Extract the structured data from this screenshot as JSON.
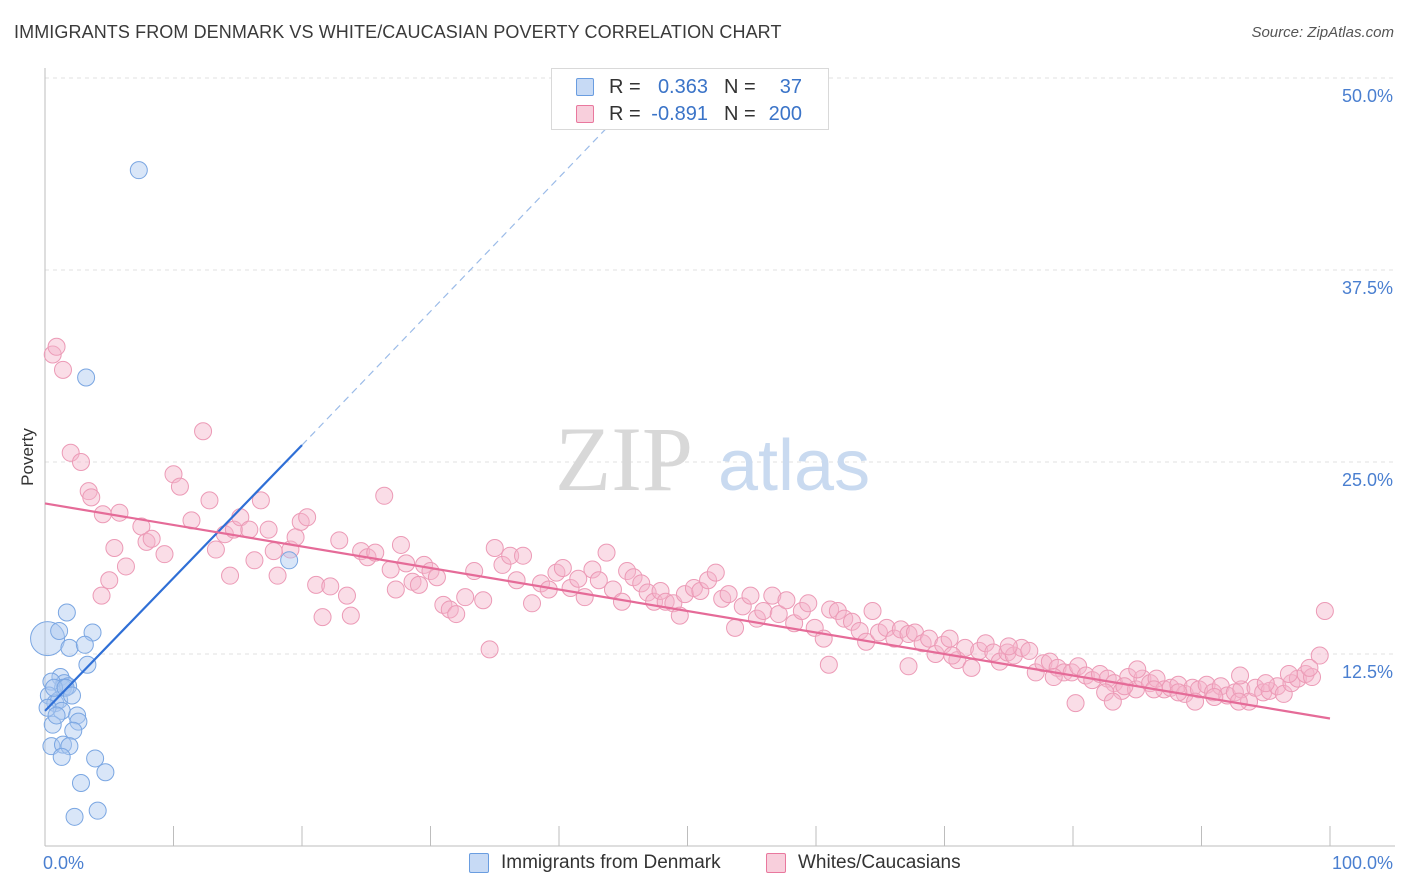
{
  "title": "IMMIGRANTS FROM DENMARK VS WHITE/CAUCASIAN POVERTY CORRELATION CHART",
  "source": "Source: ZipAtlas.com",
  "watermark": {
    "zip": "ZIP",
    "atlas": "atlas"
  },
  "legend": {
    "r_label": "R =",
    "n_label": "N =",
    "rows": [
      {
        "r": "0.363",
        "n": "37",
        "color": "#6a9de0"
      },
      {
        "r": "-0.891",
        "n": "200",
        "color": "#e9789e"
      }
    ]
  },
  "bottom_legend": [
    "Immigrants from Denmark",
    "Whites/Caucasians"
  ],
  "chart_data": {
    "type": "scatter",
    "title": "IMMIGRANTS FROM DENMARK VS WHITE/CAUCASIAN POVERTY CORRELATION CHART",
    "xlabel": "",
    "ylabel": "Poverty",
    "xlim": [
      0,
      100
    ],
    "ylim": [
      0,
      50
    ],
    "x_tick_labels": [
      "0.0%",
      "100.0%"
    ],
    "y_ticks": [
      12.5,
      25.0,
      37.5,
      50.0
    ],
    "y_tick_labels": [
      "12.5%",
      "25.0%",
      "37.5%",
      "50.0%"
    ],
    "grid": true,
    "legend_position": "top-center",
    "series": [
      {
        "name": "Immigrants from Denmark",
        "color": "#6a9de0",
        "r": 0.363,
        "n": 37,
        "trend_solid": [
          [
            0.0,
            8.8
          ],
          [
            20.0,
            26.1
          ]
        ],
        "trend_dashed": [
          [
            20.0,
            26.1
          ],
          [
            44.0,
            47.0
          ]
        ],
        "points": [
          [
            0.2,
            13.5
          ],
          [
            7.3,
            44.0
          ],
          [
            3.2,
            30.5
          ],
          [
            1.7,
            15.2
          ],
          [
            1.1,
            14.0
          ],
          [
            3.7,
            13.9
          ],
          [
            1.9,
            12.9
          ],
          [
            3.3,
            11.8
          ],
          [
            1.2,
            11.0
          ],
          [
            1.5,
            10.6
          ],
          [
            1.4,
            10.3
          ],
          [
            1.8,
            10.4
          ],
          [
            0.5,
            10.7
          ],
          [
            0.3,
            9.8
          ],
          [
            0.8,
            9.3
          ],
          [
            1.1,
            9.5
          ],
          [
            1.3,
            8.8
          ],
          [
            2.5,
            8.5
          ],
          [
            2.6,
            8.1
          ],
          [
            0.6,
            7.9
          ],
          [
            2.2,
            7.5
          ],
          [
            0.5,
            6.5
          ],
          [
            1.4,
            6.6
          ],
          [
            1.9,
            6.5
          ],
          [
            1.3,
            5.8
          ],
          [
            3.9,
            5.7
          ],
          [
            4.7,
            4.8
          ],
          [
            2.8,
            4.1
          ],
          [
            4.1,
            2.3
          ],
          [
            2.3,
            1.9
          ],
          [
            0.2,
            9.0
          ],
          [
            0.7,
            10.3
          ],
          [
            0.9,
            8.5
          ],
          [
            1.6,
            10.3
          ],
          [
            3.1,
            13.1
          ],
          [
            19.0,
            18.6
          ],
          [
            2.1,
            9.8
          ]
        ]
      },
      {
        "name": "Whites/Caucasians",
        "color": "#e9789e",
        "r": -0.891,
        "n": 200,
        "trend_solid": [
          [
            0.0,
            22.3
          ],
          [
            100.0,
            8.3
          ]
        ],
        "points": [
          [
            0.6,
            32.0
          ],
          [
            0.9,
            32.5
          ],
          [
            1.4,
            31.0
          ],
          [
            2.0,
            25.6
          ],
          [
            2.8,
            25.0
          ],
          [
            3.4,
            23.1
          ],
          [
            3.6,
            22.7
          ],
          [
            4.5,
            21.6
          ],
          [
            5.8,
            21.7
          ],
          [
            5.0,
            17.3
          ],
          [
            4.4,
            16.3
          ],
          [
            5.4,
            19.4
          ],
          [
            6.3,
            18.2
          ],
          [
            7.5,
            20.8
          ],
          [
            7.9,
            19.8
          ],
          [
            8.3,
            20.0
          ],
          [
            9.3,
            19.0
          ],
          [
            10.0,
            24.2
          ],
          [
            10.5,
            23.4
          ],
          [
            11.4,
            21.2
          ],
          [
            12.3,
            27.0
          ],
          [
            12.8,
            22.5
          ],
          [
            13.3,
            19.3
          ],
          [
            14.0,
            20.3
          ],
          [
            14.4,
            17.6
          ],
          [
            14.7,
            20.6
          ],
          [
            15.2,
            21.4
          ],
          [
            15.9,
            20.6
          ],
          [
            16.3,
            18.6
          ],
          [
            16.8,
            22.5
          ],
          [
            17.4,
            20.6
          ],
          [
            17.8,
            19.2
          ],
          [
            18.1,
            17.6
          ],
          [
            19.1,
            19.3
          ],
          [
            19.5,
            20.1
          ],
          [
            19.9,
            21.1
          ],
          [
            20.4,
            21.4
          ],
          [
            21.1,
            17.0
          ],
          [
            21.6,
            14.9
          ],
          [
            22.2,
            16.9
          ],
          [
            22.9,
            19.9
          ],
          [
            23.5,
            16.3
          ],
          [
            23.8,
            15.0
          ],
          [
            24.6,
            19.2
          ],
          [
            25.1,
            18.8
          ],
          [
            25.7,
            19.1
          ],
          [
            26.4,
            22.8
          ],
          [
            26.9,
            18.0
          ],
          [
            27.3,
            16.7
          ],
          [
            27.7,
            19.6
          ],
          [
            28.1,
            18.4
          ],
          [
            28.6,
            17.2
          ],
          [
            29.1,
            17.0
          ],
          [
            29.5,
            18.3
          ],
          [
            30.0,
            17.9
          ],
          [
            30.5,
            17.5
          ],
          [
            31.0,
            15.7
          ],
          [
            31.5,
            15.4
          ],
          [
            32.0,
            15.1
          ],
          [
            32.7,
            16.2
          ],
          [
            33.4,
            17.9
          ],
          [
            34.1,
            16.0
          ],
          [
            34.6,
            12.8
          ],
          [
            35.0,
            19.4
          ],
          [
            35.6,
            18.3
          ],
          [
            36.2,
            18.9
          ],
          [
            36.7,
            17.3
          ],
          [
            37.2,
            18.9
          ],
          [
            37.9,
            15.8
          ],
          [
            38.6,
            17.1
          ],
          [
            39.2,
            16.7
          ],
          [
            39.8,
            17.8
          ],
          [
            40.3,
            18.1
          ],
          [
            40.9,
            16.8
          ],
          [
            41.5,
            17.4
          ],
          [
            42.0,
            16.2
          ],
          [
            42.6,
            18.0
          ],
          [
            43.1,
            17.3
          ],
          [
            43.7,
            19.1
          ],
          [
            44.2,
            16.7
          ],
          [
            44.9,
            15.9
          ],
          [
            45.3,
            17.9
          ],
          [
            45.8,
            17.5
          ],
          [
            46.4,
            17.1
          ],
          [
            46.9,
            16.5
          ],
          [
            47.4,
            15.9
          ],
          [
            47.9,
            16.6
          ],
          [
            48.3,
            15.9
          ],
          [
            48.9,
            15.8
          ],
          [
            49.4,
            15.0
          ],
          [
            49.8,
            16.4
          ],
          [
            50.5,
            16.8
          ],
          [
            51.0,
            16.6
          ],
          [
            51.6,
            17.3
          ],
          [
            52.2,
            17.8
          ],
          [
            52.7,
            16.1
          ],
          [
            53.2,
            16.4
          ],
          [
            53.7,
            14.2
          ],
          [
            54.3,
            15.6
          ],
          [
            54.9,
            16.3
          ],
          [
            55.4,
            14.8
          ],
          [
            55.9,
            15.3
          ],
          [
            56.6,
            16.3
          ],
          [
            57.1,
            15.1
          ],
          [
            57.7,
            16.0
          ],
          [
            58.3,
            14.5
          ],
          [
            58.9,
            15.3
          ],
          [
            59.4,
            15.8
          ],
          [
            59.9,
            14.2
          ],
          [
            60.6,
            13.5
          ],
          [
            61.1,
            15.4
          ],
          [
            61.7,
            15.3
          ],
          [
            62.2,
            14.8
          ],
          [
            62.8,
            14.6
          ],
          [
            63.4,
            14.0
          ],
          [
            63.9,
            13.3
          ],
          [
            64.4,
            15.3
          ],
          [
            64.9,
            13.9
          ],
          [
            65.5,
            14.2
          ],
          [
            66.1,
            13.5
          ],
          [
            66.6,
            14.1
          ],
          [
            67.2,
            13.8
          ],
          [
            67.7,
            13.9
          ],
          [
            68.3,
            13.2
          ],
          [
            68.8,
            13.5
          ],
          [
            69.3,
            12.5
          ],
          [
            69.9,
            13.1
          ],
          [
            70.4,
            13.5
          ],
          [
            71.0,
            12.1
          ],
          [
            71.6,
            12.9
          ],
          [
            72.1,
            11.6
          ],
          [
            72.7,
            12.7
          ],
          [
            73.2,
            13.2
          ],
          [
            73.8,
            12.6
          ],
          [
            74.3,
            12.0
          ],
          [
            74.9,
            12.6
          ],
          [
            75.4,
            12.4
          ],
          [
            76.0,
            12.9
          ],
          [
            76.6,
            12.7
          ],
          [
            77.1,
            11.3
          ],
          [
            77.7,
            11.9
          ],
          [
            78.2,
            12.0
          ],
          [
            78.8,
            11.6
          ],
          [
            79.3,
            11.3
          ],
          [
            79.9,
            11.3
          ],
          [
            80.4,
            11.7
          ],
          [
            81.0,
            11.1
          ],
          [
            81.5,
            10.8
          ],
          [
            82.1,
            11.2
          ],
          [
            82.7,
            10.9
          ],
          [
            83.2,
            10.6
          ],
          [
            83.8,
            10.1
          ],
          [
            84.3,
            11.0
          ],
          [
            84.9,
            10.2
          ],
          [
            85.4,
            10.9
          ],
          [
            86.0,
            10.6
          ],
          [
            86.5,
            10.9
          ],
          [
            87.1,
            10.2
          ],
          [
            87.6,
            10.3
          ],
          [
            88.2,
            10.5
          ],
          [
            88.7,
            9.9
          ],
          [
            89.3,
            10.3
          ],
          [
            89.8,
            10.2
          ],
          [
            90.4,
            10.5
          ],
          [
            90.9,
            10.0
          ],
          [
            91.5,
            10.4
          ],
          [
            92.0,
            9.8
          ],
          [
            92.6,
            10.0
          ],
          [
            93.1,
            10.2
          ],
          [
            93.7,
            9.4
          ],
          [
            94.2,
            10.3
          ],
          [
            94.8,
            10.0
          ],
          [
            95.3,
            10.1
          ],
          [
            95.9,
            10.4
          ],
          [
            96.4,
            9.9
          ],
          [
            97.0,
            10.6
          ],
          [
            97.5,
            10.9
          ],
          [
            98.1,
            11.2
          ],
          [
            98.6,
            11.0
          ],
          [
            99.2,
            12.4
          ],
          [
            99.6,
            15.3
          ],
          [
            85.0,
            11.5
          ],
          [
            86.3,
            10.2
          ],
          [
            84.0,
            10.4
          ],
          [
            91.0,
            9.7
          ],
          [
            93.0,
            11.1
          ],
          [
            95.0,
            10.6
          ],
          [
            96.8,
            11.2
          ],
          [
            98.4,
            11.6
          ],
          [
            61.0,
            11.8
          ],
          [
            67.2,
            11.7
          ],
          [
            70.6,
            12.4
          ],
          [
            75.0,
            13.0
          ],
          [
            78.5,
            11.0
          ],
          [
            80.2,
            9.3
          ],
          [
            82.5,
            10.0
          ],
          [
            83.1,
            9.4
          ],
          [
            88.2,
            10.0
          ],
          [
            89.5,
            9.4
          ],
          [
            92.9,
            9.4
          ]
        ]
      }
    ]
  }
}
